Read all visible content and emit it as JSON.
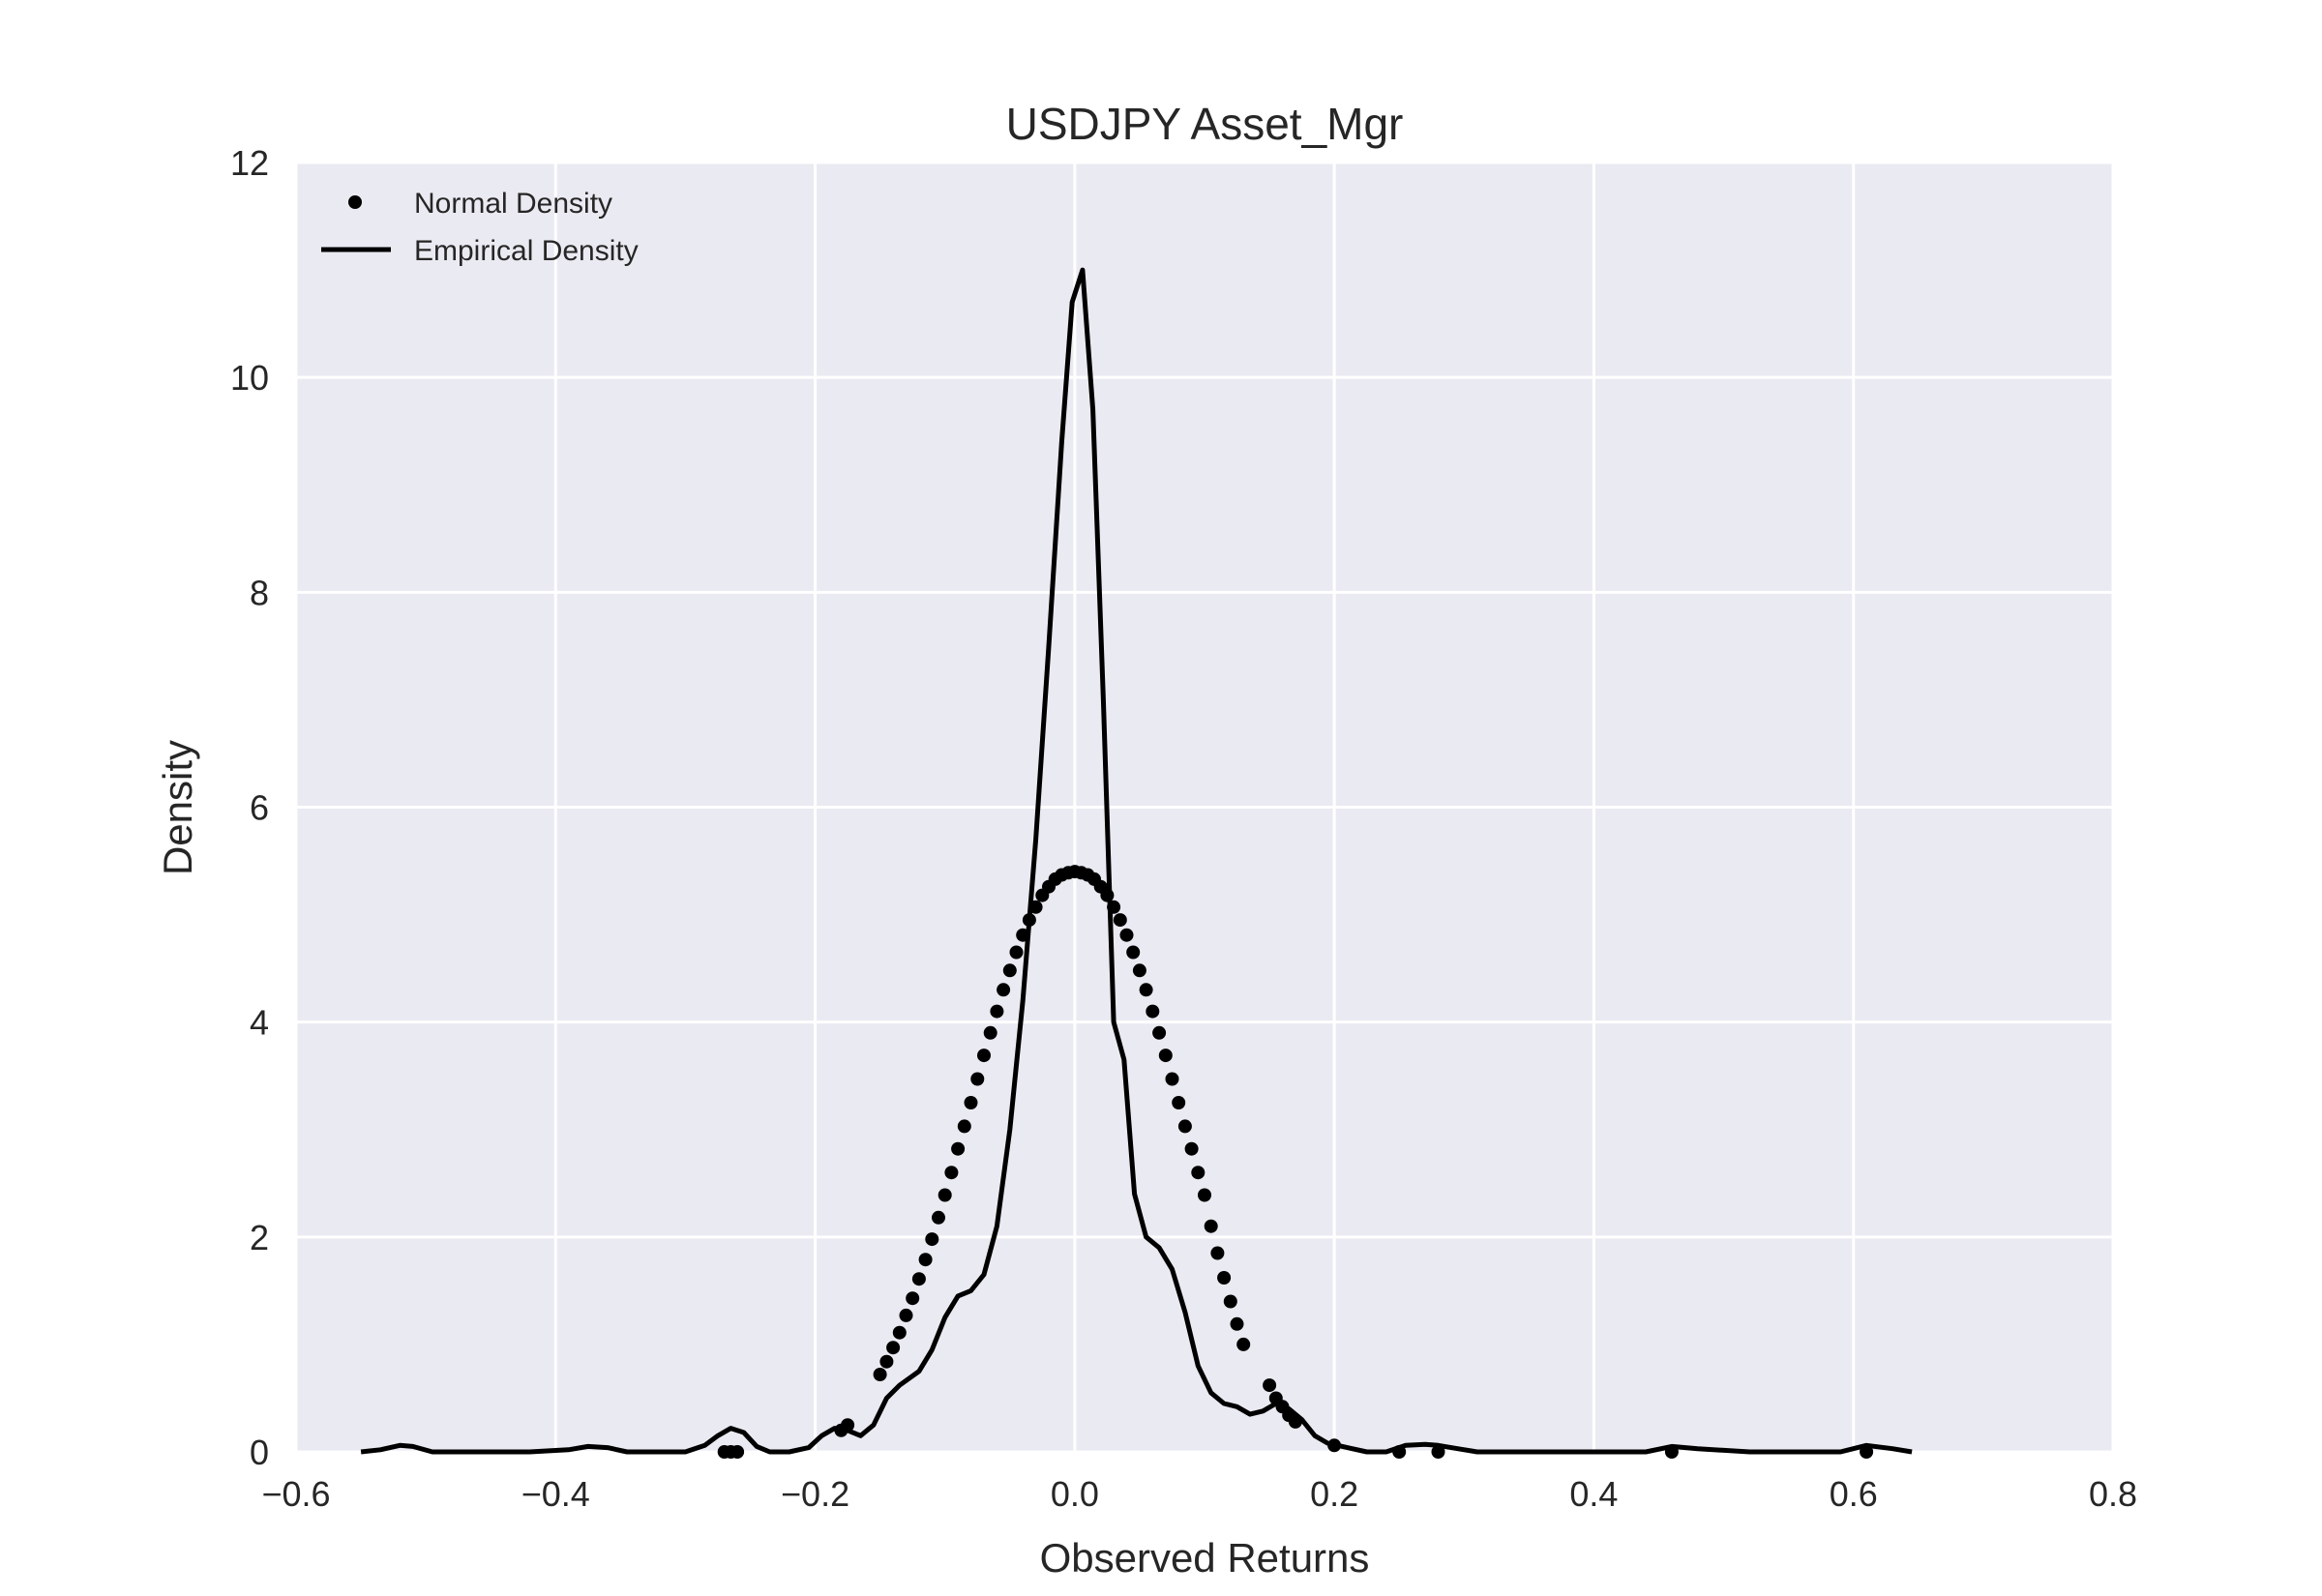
{
  "chart_data": {
    "type": "line",
    "title": "USDJPY Asset_Mgr",
    "xlabel": "Observed Returns",
    "ylabel": "Density",
    "xlim": [
      -0.6,
      0.8
    ],
    "ylim": [
      0,
      12
    ],
    "xticks": [
      "−0.6",
      "−0.4",
      "−0.2",
      "0.0",
      "0.2",
      "0.4",
      "0.6",
      "0.8"
    ],
    "yticks": [
      "0",
      "2",
      "4",
      "6",
      "8",
      "10",
      "12"
    ],
    "grid": true,
    "legend_position": "top-left",
    "background_color": "#eaeaf2",
    "grid_color": "#ffffff",
    "series_color": "#000000",
    "series": [
      {
        "name": "Normal Density",
        "style": "points",
        "x": [
          -0.27,
          -0.265,
          -0.26,
          -0.18,
          -0.175,
          -0.15,
          -0.145,
          -0.14,
          -0.135,
          -0.13,
          -0.125,
          -0.12,
          -0.115,
          -0.11,
          -0.105,
          -0.1,
          -0.095,
          -0.09,
          -0.085,
          -0.08,
          -0.075,
          -0.07,
          -0.065,
          -0.06,
          -0.055,
          -0.05,
          -0.045,
          -0.04,
          -0.035,
          -0.03,
          -0.025,
          -0.02,
          -0.015,
          -0.01,
          -0.005,
          0.0,
          0.005,
          0.01,
          0.015,
          0.02,
          0.025,
          0.03,
          0.035,
          0.04,
          0.045,
          0.05,
          0.055,
          0.06,
          0.065,
          0.07,
          0.075,
          0.08,
          0.085,
          0.09,
          0.095,
          0.1,
          0.105,
          0.11,
          0.115,
          0.12,
          0.125,
          0.13,
          0.15,
          0.155,
          0.16,
          0.165,
          0.17,
          0.2,
          0.25,
          0.28,
          0.46,
          0.61
        ],
        "y": [
          0.0,
          0.0,
          0.0,
          0.2,
          0.25,
          0.72,
          0.84,
          0.97,
          1.11,
          1.27,
          1.43,
          1.61,
          1.79,
          1.98,
          2.18,
          2.39,
          2.6,
          2.82,
          3.03,
          3.25,
          3.47,
          3.69,
          3.9,
          4.1,
          4.3,
          4.48,
          4.65,
          4.81,
          4.95,
          5.07,
          5.18,
          5.26,
          5.33,
          5.37,
          5.39,
          5.4,
          5.39,
          5.37,
          5.33,
          5.26,
          5.18,
          5.07,
          4.95,
          4.81,
          4.65,
          4.48,
          4.3,
          4.1,
          3.9,
          3.69,
          3.47,
          3.25,
          3.03,
          2.82,
          2.6,
          2.39,
          2.1,
          1.85,
          1.62,
          1.4,
          1.19,
          1.0,
          0.62,
          0.5,
          0.42,
          0.34,
          0.28,
          0.06,
          0.0,
          0.0,
          0.0,
          0.0
        ]
      },
      {
        "name": "Empirical Density",
        "style": "line",
        "x": [
          -0.55,
          -0.535,
          -0.52,
          -0.51,
          -0.495,
          -0.48,
          -0.45,
          -0.42,
          -0.39,
          -0.375,
          -0.36,
          -0.345,
          -0.33,
          -0.3,
          -0.285,
          -0.275,
          -0.265,
          -0.255,
          -0.245,
          -0.235,
          -0.22,
          -0.205,
          -0.195,
          -0.185,
          -0.175,
          -0.165,
          -0.155,
          -0.145,
          -0.135,
          -0.12,
          -0.11,
          -0.1,
          -0.09,
          -0.08,
          -0.07,
          -0.06,
          -0.05,
          -0.04,
          -0.03,
          -0.02,
          -0.01,
          -0.002,
          0.006,
          0.014,
          0.022,
          0.03,
          0.038,
          0.046,
          0.055,
          0.065,
          0.075,
          0.085,
          0.095,
          0.105,
          0.115,
          0.125,
          0.135,
          0.145,
          0.155,
          0.165,
          0.175,
          0.185,
          0.195,
          0.21,
          0.225,
          0.24,
          0.255,
          0.27,
          0.28,
          0.295,
          0.31,
          0.35,
          0.4,
          0.44,
          0.46,
          0.48,
          0.52,
          0.56,
          0.59,
          0.61,
          0.63,
          0.645
        ],
        "y": [
          0.0,
          0.02,
          0.06,
          0.05,
          0.0,
          0.0,
          0.0,
          0.0,
          0.02,
          0.05,
          0.04,
          0.0,
          0.0,
          0.0,
          0.06,
          0.15,
          0.22,
          0.18,
          0.05,
          0.0,
          0.0,
          0.04,
          0.15,
          0.22,
          0.2,
          0.15,
          0.25,
          0.5,
          0.62,
          0.75,
          0.95,
          1.25,
          1.45,
          1.5,
          1.65,
          2.1,
          3.0,
          4.2,
          5.7,
          7.5,
          9.4,
          10.7,
          11.0,
          9.7,
          7.0,
          4.0,
          3.65,
          2.4,
          2.0,
          1.9,
          1.7,
          1.3,
          0.8,
          0.55,
          0.45,
          0.42,
          0.35,
          0.38,
          0.45,
          0.4,
          0.3,
          0.15,
          0.08,
          0.04,
          0.0,
          0.0,
          0.06,
          0.07,
          0.06,
          0.03,
          0.0,
          0.0,
          0.0,
          0.0,
          0.05,
          0.03,
          0.0,
          0.0,
          0.0,
          0.06,
          0.03,
          0.0
        ]
      }
    ]
  }
}
